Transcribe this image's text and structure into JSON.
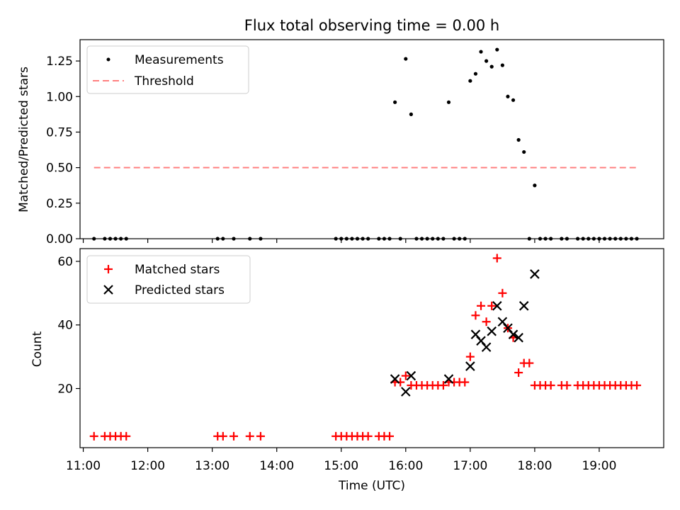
{
  "chart_data": [
    {
      "type": "scatter",
      "title": "Flux total observing time = 0.00 h",
      "xlabel": "",
      "ylabel": "Matched/Predicted stars",
      "xlim": [
        "10:57",
        "20:00"
      ],
      "ylim": [
        0,
        1.4
      ],
      "yticks": [
        "0.00",
        "0.25",
        "0.50",
        "0.75",
        "1.00",
        "1.25"
      ],
      "xticks": [
        "11:00",
        "12:00",
        "13:00",
        "14:00",
        "15:00",
        "16:00",
        "17:00",
        "18:00",
        "19:00"
      ],
      "legend_position": "top-left",
      "legend": [
        "Measurements",
        "Threshold"
      ],
      "threshold": {
        "y": 0.5,
        "x_start": "11:10",
        "x_end": "19:35",
        "color": "#ff8080"
      },
      "series": [
        {
          "name": "Measurements",
          "marker": "dot",
          "color": "#000000",
          "points": [
            [
              "11:10",
              0
            ],
            [
              "11:20",
              0
            ],
            [
              "11:25",
              0
            ],
            [
              "11:30",
              0
            ],
            [
              "11:35",
              0
            ],
            [
              "11:40",
              0
            ],
            [
              "13:05",
              0
            ],
            [
              "13:10",
              0
            ],
            [
              "13:20",
              0
            ],
            [
              "13:35",
              0
            ],
            [
              "13:45",
              0
            ],
            [
              "14:55",
              0
            ],
            [
              "15:00",
              0
            ],
            [
              "15:05",
              0
            ],
            [
              "15:10",
              0
            ],
            [
              "15:15",
              0
            ],
            [
              "15:20",
              0
            ],
            [
              "15:25",
              0
            ],
            [
              "15:35",
              0
            ],
            [
              "15:40",
              0
            ],
            [
              "15:45",
              0
            ],
            [
              "15:50",
              0.96
            ],
            [
              "15:55",
              0
            ],
            [
              "16:00",
              1.265
            ],
            [
              "16:05",
              0.875
            ],
            [
              "16:10",
              0
            ],
            [
              "16:15",
              0
            ],
            [
              "16:20",
              0
            ],
            [
              "16:25",
              0
            ],
            [
              "16:30",
              0
            ],
            [
              "16:35",
              0
            ],
            [
              "16:40",
              0.96
            ],
            [
              "16:45",
              0
            ],
            [
              "16:50",
              0
            ],
            [
              "16:55",
              0
            ],
            [
              "17:00",
              1.11
            ],
            [
              "17:05",
              1.16
            ],
            [
              "17:10",
              1.315
            ],
            [
              "17:15",
              1.25
            ],
            [
              "17:20",
              1.21
            ],
            [
              "17:25",
              1.33
            ],
            [
              "17:30",
              1.22
            ],
            [
              "17:35",
              1.0
            ],
            [
              "17:40",
              0.975
            ],
            [
              "17:45",
              0.695
            ],
            [
              "17:50",
              0.61
            ],
            [
              "17:55",
              0
            ],
            [
              "18:00",
              0.375
            ],
            [
              "18:05",
              0
            ],
            [
              "18:10",
              0
            ],
            [
              "18:15",
              0
            ],
            [
              "18:25",
              0
            ],
            [
              "18:30",
              0
            ],
            [
              "18:40",
              0
            ],
            [
              "18:45",
              0
            ],
            [
              "18:50",
              0
            ],
            [
              "18:55",
              0
            ],
            [
              "19:00",
              0
            ],
            [
              "19:05",
              0
            ],
            [
              "19:10",
              0
            ],
            [
              "19:15",
              0
            ],
            [
              "19:20",
              0
            ],
            [
              "19:25",
              0
            ],
            [
              "19:30",
              0
            ],
            [
              "19:35",
              0
            ]
          ]
        }
      ]
    },
    {
      "type": "scatter",
      "title": "",
      "xlabel": "Time (UTC)",
      "ylabel": "Count",
      "xlim": [
        "10:57",
        "20:00"
      ],
      "ylim": [
        1.4,
        64
      ],
      "yticks": [
        "20",
        "40",
        "60"
      ],
      "xticks": [
        "11:00",
        "12:00",
        "13:00",
        "14:00",
        "15:00",
        "16:00",
        "17:00",
        "18:00",
        "19:00"
      ],
      "legend_position": "top-left",
      "legend": [
        "Matched stars",
        "Predicted stars"
      ],
      "series": [
        {
          "name": "Matched stars",
          "marker": "plus",
          "color": "#ff0000",
          "points": [
            [
              "11:10",
              5
            ],
            [
              "11:20",
              5
            ],
            [
              "11:25",
              5
            ],
            [
              "11:30",
              5
            ],
            [
              "11:35",
              5
            ],
            [
              "11:40",
              5
            ],
            [
              "13:05",
              5
            ],
            [
              "13:10",
              5
            ],
            [
              "13:20",
              5
            ],
            [
              "13:35",
              5
            ],
            [
              "13:45",
              5
            ],
            [
              "14:55",
              5
            ],
            [
              "15:00",
              5
            ],
            [
              "15:05",
              5
            ],
            [
              "15:10",
              5
            ],
            [
              "15:15",
              5
            ],
            [
              "15:20",
              5
            ],
            [
              "15:25",
              5
            ],
            [
              "15:35",
              5
            ],
            [
              "15:40",
              5
            ],
            [
              "15:45",
              5
            ],
            [
              "15:50",
              22
            ],
            [
              "15:55",
              22
            ],
            [
              "16:00",
              24
            ],
            [
              "16:05",
              21
            ],
            [
              "16:10",
              21
            ],
            [
              "16:15",
              21
            ],
            [
              "16:20",
              21
            ],
            [
              "16:25",
              21
            ],
            [
              "16:30",
              21
            ],
            [
              "16:35",
              21
            ],
            [
              "16:40",
              22
            ],
            [
              "16:45",
              22
            ],
            [
              "16:50",
              22
            ],
            [
              "16:55",
              22
            ],
            [
              "17:00",
              30
            ],
            [
              "17:05",
              43
            ],
            [
              "17:10",
              46
            ],
            [
              "17:15",
              41
            ],
            [
              "17:20",
              46
            ],
            [
              "17:25",
              61
            ],
            [
              "17:30",
              50
            ],
            [
              "17:35",
              39
            ],
            [
              "17:40",
              36
            ],
            [
              "17:45",
              25
            ],
            [
              "17:50",
              28
            ],
            [
              "17:55",
              28
            ],
            [
              "18:00",
              21
            ],
            [
              "18:05",
              21
            ],
            [
              "18:10",
              21
            ],
            [
              "18:15",
              21
            ],
            [
              "18:25",
              21
            ],
            [
              "18:30",
              21
            ],
            [
              "18:40",
              21
            ],
            [
              "18:45",
              21
            ],
            [
              "18:50",
              21
            ],
            [
              "18:55",
              21
            ],
            [
              "19:00",
              21
            ],
            [
              "19:05",
              21
            ],
            [
              "19:10",
              21
            ],
            [
              "19:15",
              21
            ],
            [
              "19:20",
              21
            ],
            [
              "19:25",
              21
            ],
            [
              "19:30",
              21
            ],
            [
              "19:35",
              21
            ]
          ]
        },
        {
          "name": "Predicted stars",
          "marker": "x",
          "color": "#000000",
          "points": [
            [
              "15:50",
              23
            ],
            [
              "16:00",
              19
            ],
            [
              "16:05",
              24
            ],
            [
              "16:40",
              23
            ],
            [
              "17:00",
              27
            ],
            [
              "17:05",
              37
            ],
            [
              "17:10",
              35
            ],
            [
              "17:15",
              33
            ],
            [
              "17:20",
              38
            ],
            [
              "17:25",
              46
            ],
            [
              "17:30",
              41
            ],
            [
              "17:35",
              39
            ],
            [
              "17:40",
              37
            ],
            [
              "17:45",
              36
            ],
            [
              "17:50",
              46
            ],
            [
              "18:00",
              56
            ]
          ]
        }
      ]
    }
  ]
}
